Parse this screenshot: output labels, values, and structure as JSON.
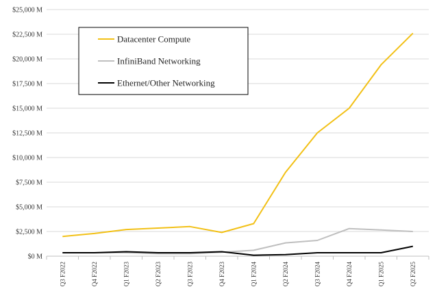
{
  "chart_data": {
    "type": "line",
    "title": "",
    "xlabel": "",
    "ylabel": "",
    "categories": [
      "Q3 F2022",
      "Q4 F2022",
      "Q1 F2023",
      "Q2 F2023",
      "Q3 F2023",
      "Q4 F2023",
      "Q1 F2024",
      "Q2 F2024",
      "Q3 F2024",
      "Q4 F2024",
      "Q1 F2025",
      "Q2 F2025"
    ],
    "ylim": [
      0,
      25000
    ],
    "yticks": [
      0,
      2500,
      5000,
      7500,
      10000,
      12500,
      15000,
      17500,
      20000,
      22500,
      25000
    ],
    "ytick_labels": [
      "$0 M",
      "$2,500 M",
      "$5,000 M",
      "$7,500 M",
      "$10,000 M",
      "$12,500 M",
      "$15,000 M",
      "$17,500 M",
      "$20,000 M",
      "$22,500 M",
      "$25,000 M"
    ],
    "grid": true,
    "legend_position": "top-left",
    "series": [
      {
        "name": "Datacenter Compute",
        "color": "#f2c015",
        "values": [
          2000,
          2300,
          2700,
          2850,
          3000,
          2400,
          3300,
          8500,
          12500,
          15000,
          19400,
          22600
        ]
      },
      {
        "name": "InfiniBand Networking",
        "color": "#bfbfbf",
        "values": [
          350,
          350,
          350,
          250,
          250,
          400,
          600,
          1350,
          1600,
          2800,
          2650,
          2500
        ]
      },
      {
        "name": "Ethernet/Other Networking",
        "color": "#000000",
        "values": [
          350,
          350,
          450,
          350,
          350,
          450,
          100,
          150,
          350,
          350,
          350,
          1000
        ]
      }
    ]
  }
}
